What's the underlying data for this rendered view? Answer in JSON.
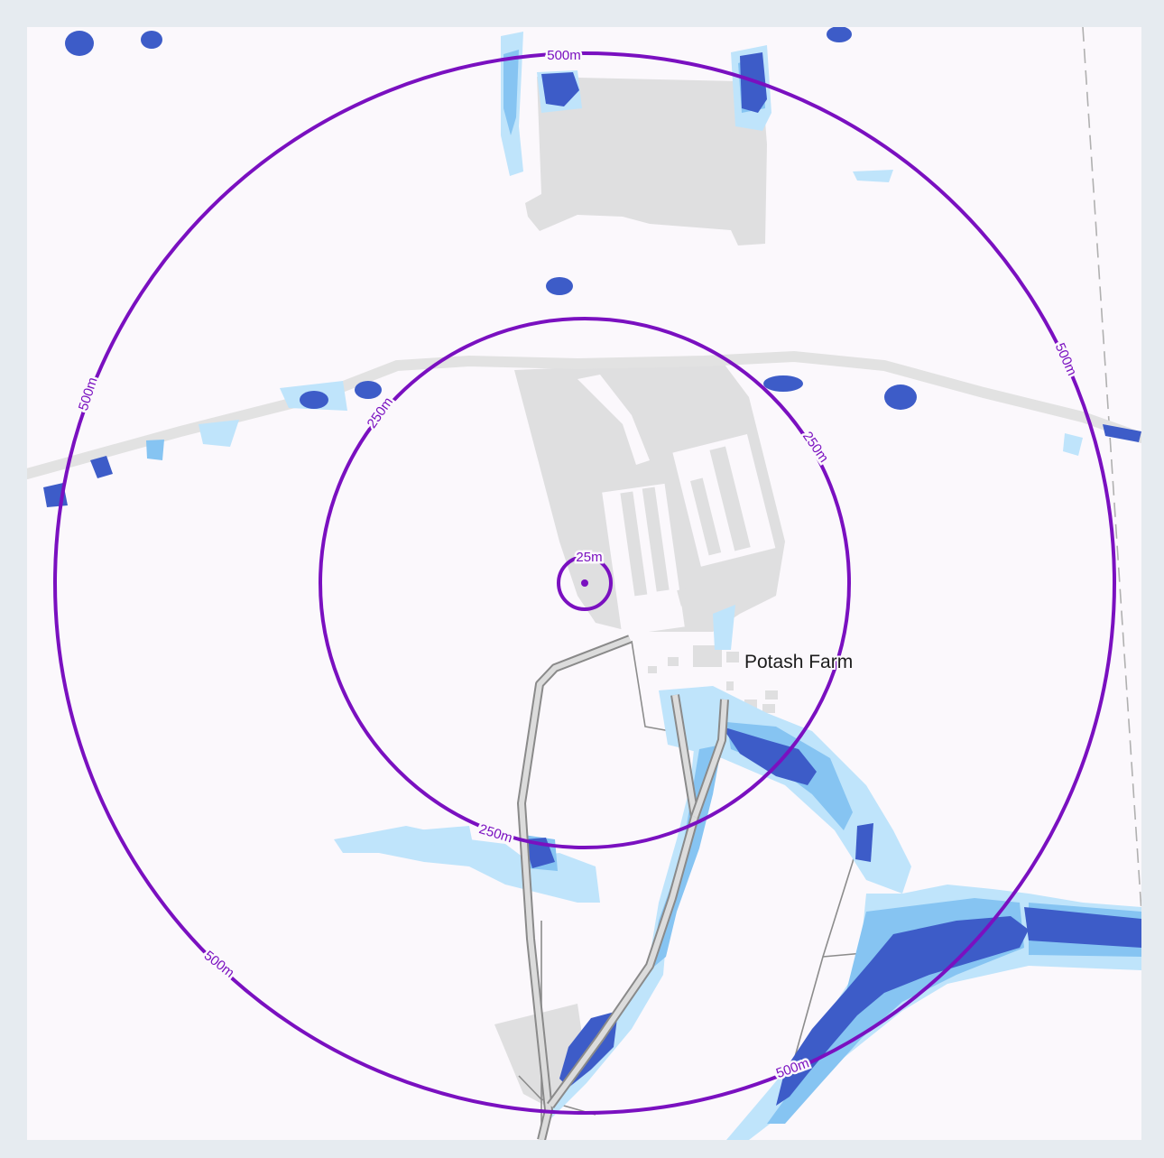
{
  "map": {
    "place_label": "Potash Farm",
    "rings": [
      {
        "radius_label": "25m",
        "color": "#7a10c0"
      },
      {
        "radius_label": "250m",
        "color": "#7a10c0"
      },
      {
        "radius_label": "500m",
        "color": "#7a10c0"
      }
    ],
    "center_marker": "center-point-icon",
    "flood_colors": {
      "low": "#bfe4fb",
      "medium": "#86c4f2",
      "high": "#3d5cc8"
    },
    "building_color": "#dfdfe0",
    "background_color": "#fbf8fc"
  }
}
